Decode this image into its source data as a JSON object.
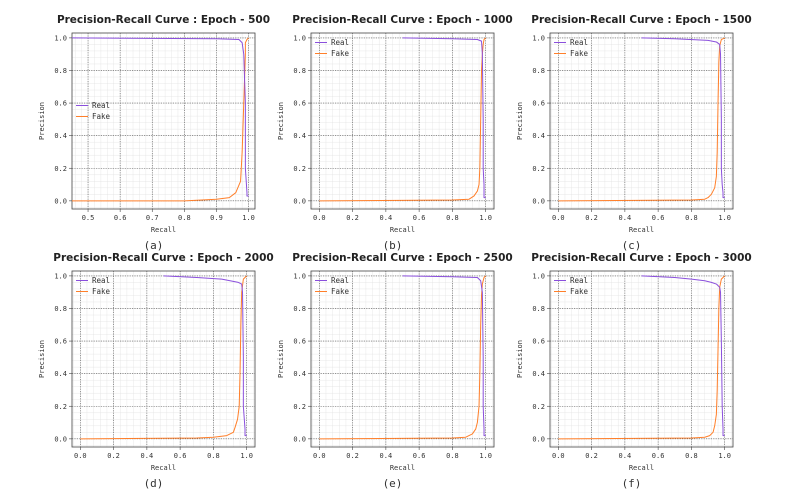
{
  "chart_data": [
    {
      "type": "line",
      "caption": "(a)",
      "title": "Precision-Recall Curve : Epoch - 500",
      "xlabel": "Recall",
      "ylabel": "Precision",
      "xlim": [
        0.45,
        1.02
      ],
      "ylim": [
        -0.05,
        1.03
      ],
      "xticks": [
        0.5,
        0.6,
        0.7,
        0.8,
        0.9,
        1.0
      ],
      "xtick_labels": [
        "0.5",
        "0.6",
        "0.7",
        "0.8",
        "0.9",
        "1.0"
      ],
      "yticks": [
        0.0,
        0.2,
        0.4,
        0.6,
        0.8,
        1.0
      ],
      "ytick_labels": [
        "0.0",
        "0.2",
        "0.4",
        "0.6",
        "0.8",
        "1.0"
      ],
      "legend": "center-left",
      "series": [
        {
          "name": "Real",
          "color": "#8a4fdc",
          "x": [
            0.45,
            0.9,
            0.97,
            0.98,
            0.985,
            0.99,
            0.99,
            0.995,
            0.995,
            1.0
          ],
          "y": [
            1.0,
            0.995,
            0.99,
            0.97,
            0.9,
            0.6,
            0.2,
            0.05,
            0.03,
            0.03
          ]
        },
        {
          "name": "Fake",
          "color": "#ff7f2a",
          "x": [
            0.45,
            0.8,
            0.9,
            0.94,
            0.96,
            0.975,
            0.98,
            0.985,
            0.99,
            0.99,
            0.995,
            1.0
          ],
          "y": [
            0.0,
            0.0,
            0.01,
            0.02,
            0.05,
            0.12,
            0.3,
            0.6,
            0.9,
            0.97,
            0.99,
            1.0
          ]
        }
      ]
    },
    {
      "type": "line",
      "caption": "(b)",
      "title": "Precision-Recall Curve : Epoch - 1000",
      "xlabel": "Recall",
      "ylabel": "Precision",
      "xlim": [
        -0.05,
        1.05
      ],
      "ylim": [
        -0.05,
        1.03
      ],
      "xticks": [
        0.0,
        0.2,
        0.4,
        0.6,
        0.8,
        1.0
      ],
      "xtick_labels": [
        "0.0",
        "0.2",
        "0.4",
        "0.6",
        "0.8",
        "1.0"
      ],
      "yticks": [
        0.0,
        0.2,
        0.4,
        0.6,
        0.8,
        1.0
      ],
      "ytick_labels": [
        "0.0",
        "0.2",
        "0.4",
        "0.6",
        "0.8",
        "1.0"
      ],
      "legend": "top-left",
      "series": [
        {
          "name": "Real",
          "color": "#8a4fdc",
          "x": [
            0.5,
            0.8,
            0.95,
            0.975,
            0.98,
            0.985,
            0.985,
            0.99,
            0.99,
            1.0
          ],
          "y": [
            1.0,
            0.995,
            0.99,
            0.98,
            0.9,
            0.5,
            0.2,
            0.1,
            0.02,
            0.02
          ]
        },
        {
          "name": "Fake",
          "color": "#ff7f2a",
          "x": [
            0.0,
            0.8,
            0.9,
            0.93,
            0.95,
            0.96,
            0.965,
            0.97,
            0.975,
            0.98,
            0.985,
            0.99,
            1.0
          ],
          "y": [
            0.0,
            0.005,
            0.01,
            0.03,
            0.06,
            0.1,
            0.2,
            0.5,
            0.8,
            0.9,
            0.96,
            0.99,
            1.0
          ]
        }
      ]
    },
    {
      "type": "line",
      "caption": "(c)",
      "title": "Precision-Recall Curve : Epoch - 1500",
      "xlabel": "Recall",
      "ylabel": "Precision",
      "xlim": [
        -0.05,
        1.05
      ],
      "ylim": [
        -0.05,
        1.03
      ],
      "xticks": [
        0.0,
        0.2,
        0.4,
        0.6,
        0.8,
        1.0
      ],
      "xtick_labels": [
        "0.0",
        "0.2",
        "0.4",
        "0.6",
        "0.8",
        "1.0"
      ],
      "yticks": [
        0.0,
        0.2,
        0.4,
        0.6,
        0.8,
        1.0
      ],
      "ytick_labels": [
        "0.0",
        "0.2",
        "0.4",
        "0.6",
        "0.8",
        "1.0"
      ],
      "legend": "top-left",
      "series": [
        {
          "name": "Real",
          "color": "#8a4fdc",
          "x": [
            0.5,
            0.7,
            0.9,
            0.95,
            0.97,
            0.975,
            0.98,
            0.98,
            0.985,
            0.99,
            0.99,
            1.0
          ],
          "y": [
            1.0,
            0.995,
            0.985,
            0.975,
            0.96,
            0.9,
            0.5,
            0.2,
            0.1,
            0.05,
            0.02,
            0.02
          ]
        },
        {
          "name": "Fake",
          "color": "#ff7f2a",
          "x": [
            0.0,
            0.8,
            0.88,
            0.9,
            0.92,
            0.94,
            0.95,
            0.955,
            0.96,
            0.965,
            0.97,
            0.98,
            1.0
          ],
          "y": [
            0.0,
            0.005,
            0.01,
            0.02,
            0.04,
            0.08,
            0.15,
            0.3,
            0.6,
            0.85,
            0.95,
            0.99,
            1.0
          ]
        }
      ]
    },
    {
      "type": "line",
      "caption": "(d)",
      "title": "Precision-Recall Curve : Epoch - 2000",
      "xlabel": "Recall",
      "ylabel": "Precision",
      "xlim": [
        -0.05,
        1.05
      ],
      "ylim": [
        -0.05,
        1.03
      ],
      "xticks": [
        0.0,
        0.2,
        0.4,
        0.6,
        0.8,
        1.0
      ],
      "xtick_labels": [
        "0.0",
        "0.2",
        "0.4",
        "0.6",
        "0.8",
        "1.0"
      ],
      "yticks": [
        0.0,
        0.2,
        0.4,
        0.6,
        0.8,
        1.0
      ],
      "ytick_labels": [
        "0.0",
        "0.2",
        "0.4",
        "0.6",
        "0.8",
        "1.0"
      ],
      "legend": "top-left",
      "series": [
        {
          "name": "Real",
          "color": "#8a4fdc",
          "x": [
            0.5,
            0.7,
            0.85,
            0.9,
            0.95,
            0.97,
            0.975,
            0.98,
            0.98,
            0.99,
            0.99,
            1.0
          ],
          "y": [
            1.0,
            0.99,
            0.98,
            0.97,
            0.96,
            0.95,
            0.9,
            0.5,
            0.2,
            0.06,
            0.02,
            0.02
          ]
        },
        {
          "name": "Fake",
          "color": "#ff7f2a",
          "x": [
            0.0,
            0.7,
            0.8,
            0.88,
            0.92,
            0.93,
            0.945,
            0.955,
            0.96,
            0.965,
            0.97,
            0.98,
            1.0
          ],
          "y": [
            0.0,
            0.005,
            0.01,
            0.02,
            0.04,
            0.07,
            0.12,
            0.2,
            0.4,
            0.7,
            0.9,
            0.98,
            1.0
          ]
        }
      ]
    },
    {
      "type": "line",
      "caption": "(e)",
      "title": "Precision-Recall Curve : Epoch - 2500",
      "xlabel": "Recall",
      "ylabel": "Precision",
      "xlim": [
        -0.05,
        1.05
      ],
      "ylim": [
        -0.05,
        1.03
      ],
      "xticks": [
        0.0,
        0.2,
        0.4,
        0.6,
        0.8,
        1.0
      ],
      "xtick_labels": [
        "0.0",
        "0.2",
        "0.4",
        "0.6",
        "0.8",
        "1.0"
      ],
      "yticks": [
        0.0,
        0.2,
        0.4,
        0.6,
        0.8,
        1.0
      ],
      "ytick_labels": [
        "0.0",
        "0.2",
        "0.4",
        "0.6",
        "0.8",
        "1.0"
      ],
      "legend": "top-left",
      "series": [
        {
          "name": "Real",
          "color": "#8a4fdc",
          "x": [
            0.5,
            0.8,
            0.95,
            0.97,
            0.98,
            0.985,
            0.985,
            0.99,
            0.99,
            1.0
          ],
          "y": [
            1.0,
            0.995,
            0.99,
            0.97,
            0.9,
            0.5,
            0.2,
            0.06,
            0.02,
            0.02
          ]
        },
        {
          "name": "Fake",
          "color": "#ff7f2a",
          "x": [
            0.0,
            0.8,
            0.88,
            0.92,
            0.94,
            0.95,
            0.96,
            0.965,
            0.97,
            0.975,
            0.98,
            0.99,
            1.0
          ],
          "y": [
            0.0,
            0.005,
            0.01,
            0.03,
            0.06,
            0.1,
            0.2,
            0.4,
            0.7,
            0.88,
            0.95,
            0.99,
            1.0
          ]
        }
      ]
    },
    {
      "type": "line",
      "caption": "(f)",
      "title": "Precision-Recall Curve : Epoch - 3000",
      "xlabel": "Recall",
      "ylabel": "Precision",
      "xlim": [
        -0.05,
        1.05
      ],
      "ylim": [
        -0.05,
        1.03
      ],
      "xticks": [
        0.0,
        0.2,
        0.4,
        0.6,
        0.8,
        1.0
      ],
      "xtick_labels": [
        "0.0",
        "0.2",
        "0.4",
        "0.6",
        "0.8",
        "1.0"
      ],
      "yticks": [
        0.0,
        0.2,
        0.4,
        0.6,
        0.8,
        1.0
      ],
      "ytick_labels": [
        "0.0",
        "0.2",
        "0.4",
        "0.6",
        "0.8",
        "1.0"
      ],
      "legend": "top-left",
      "series": [
        {
          "name": "Real",
          "color": "#8a4fdc",
          "x": [
            0.5,
            0.7,
            0.8,
            0.88,
            0.92,
            0.95,
            0.96,
            0.97,
            0.975,
            0.98,
            0.985,
            0.99,
            0.99,
            1.0
          ],
          "y": [
            1.0,
            0.99,
            0.98,
            0.97,
            0.96,
            0.95,
            0.94,
            0.93,
            0.9,
            0.6,
            0.2,
            0.06,
            0.02,
            0.02
          ]
        },
        {
          "name": "Fake",
          "color": "#ff7f2a",
          "x": [
            0.0,
            0.8,
            0.88,
            0.91,
            0.93,
            0.94,
            0.95,
            0.955,
            0.96,
            0.965,
            0.97,
            0.98,
            1.0
          ],
          "y": [
            0.0,
            0.005,
            0.01,
            0.02,
            0.04,
            0.08,
            0.15,
            0.3,
            0.55,
            0.8,
            0.93,
            0.98,
            1.0
          ]
        }
      ]
    }
  ]
}
